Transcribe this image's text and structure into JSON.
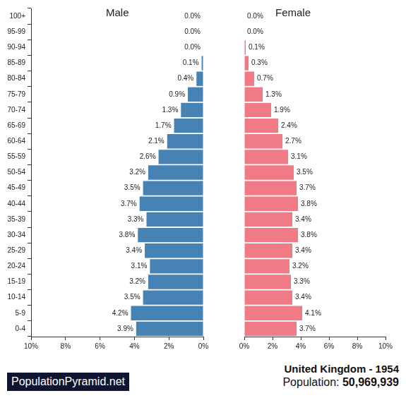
{
  "chart_data": {
    "type": "bar",
    "orientation": "horizontal",
    "title": "United Kingdom - 1954",
    "subtitle": "Population: 50,969,939",
    "annotations": [
      "PopulationPyramid.net"
    ],
    "categories": [
      "100+",
      "95-99",
      "90-94",
      "85-89",
      "80-84",
      "75-79",
      "70-74",
      "65-69",
      "60-64",
      "55-59",
      "50-54",
      "45-49",
      "40-44",
      "35-39",
      "30-34",
      "25-29",
      "20-24",
      "15-19",
      "10-14",
      "5-9",
      "0-4"
    ],
    "series": [
      {
        "name": "Male",
        "color": "#4682b4",
        "values": [
          0.0,
          0.0,
          0.0,
          0.1,
          0.4,
          0.9,
          1.3,
          1.7,
          2.1,
          2.6,
          3.2,
          3.5,
          3.7,
          3.3,
          3.8,
          3.4,
          3.1,
          3.2,
          3.5,
          4.2,
          3.9
        ],
        "value_labels": [
          "0.0%",
          "0.0%",
          "0.0%",
          "0.1%",
          "0.4%",
          "0.9%",
          "1.3%",
          "1.7%",
          "2.1%",
          "2.6%",
          "3.2%",
          "3.5%",
          "3.7%",
          "3.3%",
          "3.8%",
          "3.4%",
          "3.1%",
          "3.2%",
          "3.5%",
          "4.2%",
          "3.9%"
        ]
      },
      {
        "name": "Female",
        "color": "#f07b87",
        "values": [
          0.0,
          0.0,
          0.1,
          0.3,
          0.7,
          1.3,
          1.9,
          2.4,
          2.7,
          3.1,
          3.5,
          3.7,
          3.8,
          3.4,
          3.8,
          3.4,
          3.2,
          3.3,
          3.4,
          4.1,
          3.7
        ],
        "value_labels": [
          "0.0%",
          "0.0%",
          "0.1%",
          "0.3%",
          "0.7%",
          "1.3%",
          "1.9%",
          "2.4%",
          "2.7%",
          "3.1%",
          "3.5%",
          "3.7%",
          "3.8%",
          "3.4%",
          "3.8%",
          "3.4%",
          "3.2%",
          "3.3%",
          "3.4%",
          "4.1%",
          "3.7%"
        ]
      }
    ],
    "xlim": [
      0,
      10
    ],
    "xticks": [
      {
        "value": 0,
        "label": "0%"
      },
      {
        "value": 2,
        "label": "2%"
      },
      {
        "value": 4,
        "label": "4%"
      },
      {
        "value": 6,
        "label": "6%"
      },
      {
        "value": 8,
        "label": "8%"
      },
      {
        "value": 10,
        "label": "10%"
      }
    ],
    "grid": false,
    "data_labels": true
  }
}
